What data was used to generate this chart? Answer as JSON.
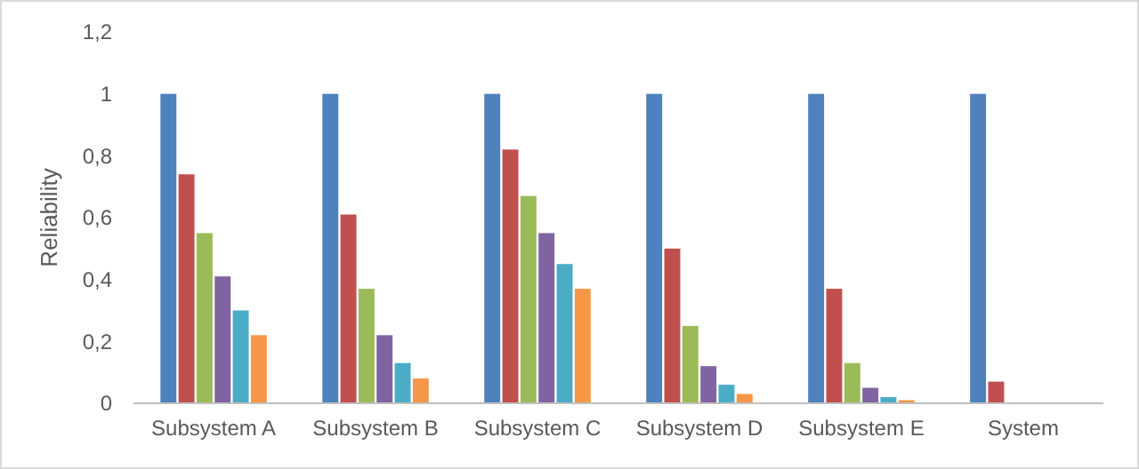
{
  "chart_data": {
    "type": "bar",
    "ylabel": "Reliability",
    "categories": [
      "Subsystem A",
      "Subsystem B",
      "Subsystem C",
      "Subsystem D",
      "Subsystem E",
      "System"
    ],
    "series": [
      {
        "color": "#4f81bd",
        "values": [
          1,
          1,
          1,
          1,
          1,
          1
        ]
      },
      {
        "color": "#c0504d",
        "values": [
          0.74,
          0.61,
          0.82,
          0.5,
          0.37,
          0.07
        ]
      },
      {
        "color": "#9bbb59",
        "values": [
          0.55,
          0.37,
          0.67,
          0.25,
          0.13,
          0
        ]
      },
      {
        "color": "#8064a2",
        "values": [
          0.41,
          0.22,
          0.55,
          0.12,
          0.05,
          0
        ]
      },
      {
        "color": "#4bacc6",
        "values": [
          0.3,
          0.13,
          0.45,
          0.06,
          0.02,
          0
        ]
      },
      {
        "color": "#f79646",
        "values": [
          0.22,
          0.08,
          0.37,
          0.03,
          0.01,
          0
        ]
      }
    ],
    "ylim": [
      0,
      1.2
    ],
    "yticks": [
      0,
      {
        "value": 0.2,
        "label": "0,2"
      },
      {
        "value": 0.4,
        "label": "0,4"
      },
      {
        "value": 0.6,
        "label": "0,6"
      },
      {
        "value": 0.8,
        "label": "0,8"
      },
      1,
      {
        "value": 1.2,
        "label": "1,2"
      }
    ],
    "grid": false
  }
}
